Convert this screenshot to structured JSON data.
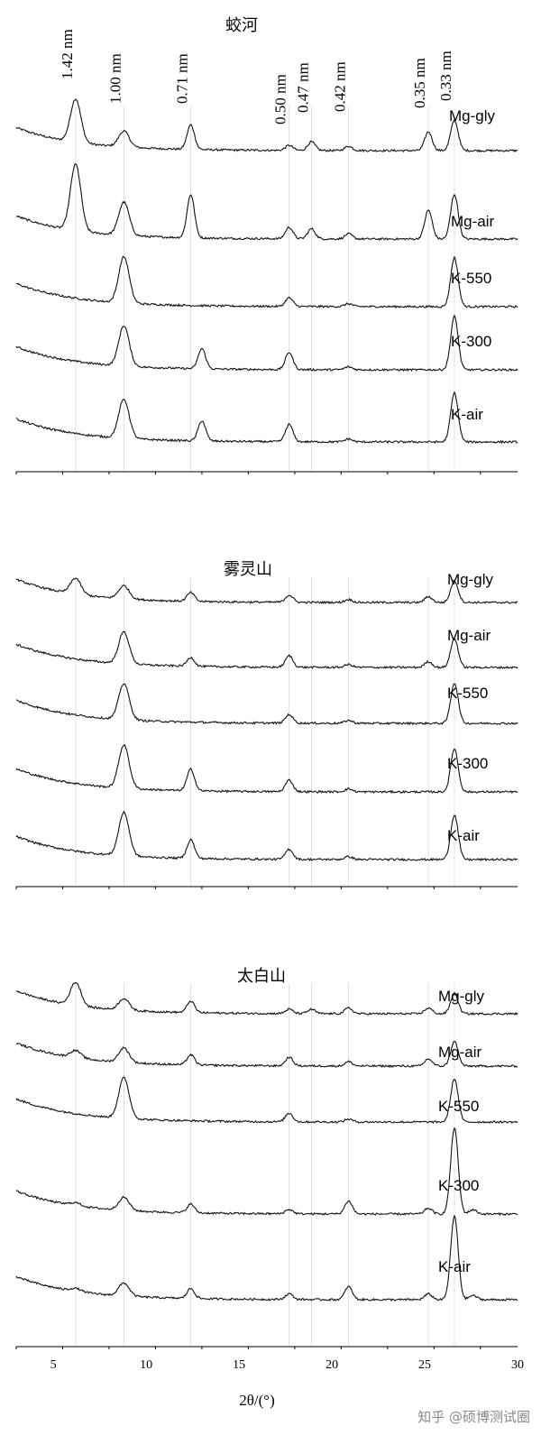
{
  "watermark": "知乎 @硕博测试圈",
  "chart_data": {
    "type": "line",
    "xlabel": "2θ/(°)",
    "xlim": [
      3,
      30
    ],
    "xticks": [
      5,
      10,
      15,
      20,
      25,
      30
    ],
    "grid": false,
    "reference_lines": {
      "two_theta": [
        6.2,
        8.8,
        12.4,
        17.7,
        18.9,
        20.9,
        25.2,
        26.6
      ],
      "d_labels": [
        "1.42 nm",
        "1.00 nm",
        "0.71 nm",
        "0.50 nm",
        "0.47 nm",
        "0.42 nm",
        "0.35 nm",
        "0.33 nm"
      ]
    },
    "panels": [
      {
        "title": "蛟河",
        "series": [
          {
            "name": "Mg-gly",
            "peaks": [
              [
                6.2,
                3.0
              ],
              [
                8.8,
                1.1
              ],
              [
                12.4,
                1.7
              ],
              [
                17.7,
                0.35
              ],
              [
                18.9,
                0.6
              ],
              [
                20.9,
                0.3
              ],
              [
                25.2,
                1.3
              ],
              [
                26.6,
                2.1
              ]
            ]
          },
          {
            "name": "Mg-air",
            "peaks": [
              [
                6.2,
                4.6
              ],
              [
                8.8,
                2.3
              ],
              [
                12.4,
                3.0
              ],
              [
                17.7,
                0.8
              ],
              [
                18.9,
                0.7
              ],
              [
                20.9,
                0.35
              ],
              [
                25.2,
                2.0
              ],
              [
                26.6,
                3.1
              ]
            ]
          },
          {
            "name": "K-550",
            "peaks": [
              [
                8.8,
                3.2
              ],
              [
                17.7,
                0.6
              ],
              [
                20.9,
                0.2
              ],
              [
                26.6,
                3.4
              ]
            ]
          },
          {
            "name": "K-300",
            "peaks": [
              [
                8.8,
                2.8
              ],
              [
                13.0,
                1.4
              ],
              [
                17.7,
                1.2
              ],
              [
                20.9,
                0.2
              ],
              [
                26.6,
                3.7
              ]
            ]
          },
          {
            "name": "K-air",
            "peaks": [
              [
                8.8,
                2.7
              ],
              [
                13.0,
                1.4
              ],
              [
                17.7,
                1.2
              ],
              [
                20.9,
                0.2
              ],
              [
                26.6,
                3.4
              ]
            ]
          }
        ]
      },
      {
        "title": "雾灵山",
        "series": [
          {
            "name": "Mg-gly",
            "peaks": [
              [
                6.2,
                1.1
              ],
              [
                8.8,
                0.9
              ],
              [
                12.4,
                0.6
              ],
              [
                17.7,
                0.5
              ],
              [
                20.9,
                0.2
              ],
              [
                25.2,
                0.4
              ],
              [
                26.6,
                1.5
              ]
            ]
          },
          {
            "name": "Mg-air",
            "peaks": [
              [
                8.8,
                2.2
              ],
              [
                12.4,
                0.6
              ],
              [
                17.7,
                0.8
              ],
              [
                20.9,
                0.2
              ],
              [
                25.2,
                0.4
              ],
              [
                26.6,
                2.0
              ]
            ]
          },
          {
            "name": "K-550",
            "peaks": [
              [
                8.8,
                2.5
              ],
              [
                17.7,
                0.6
              ],
              [
                20.9,
                0.2
              ],
              [
                26.6,
                2.8
              ]
            ]
          },
          {
            "name": "K-300",
            "peaks": [
              [
                8.8,
                3.0
              ],
              [
                12.4,
                1.5
              ],
              [
                17.7,
                0.8
              ],
              [
                20.9,
                0.2
              ],
              [
                26.6,
                3.0
              ]
            ]
          },
          {
            "name": "K-air",
            "peaks": [
              [
                8.8,
                3.0
              ],
              [
                12.4,
                1.3
              ],
              [
                17.7,
                0.7
              ],
              [
                20.9,
                0.2
              ],
              [
                26.6,
                3.1
              ]
            ]
          }
        ]
      },
      {
        "title": "太白山",
        "series": [
          {
            "name": "Mg-gly",
            "peaks": [
              [
                6.2,
                1.6
              ],
              [
                8.8,
                0.8
              ],
              [
                12.4,
                0.8
              ],
              [
                17.7,
                0.3
              ],
              [
                18.9,
                0.3
              ],
              [
                20.9,
                0.4
              ],
              [
                25.2,
                0.4
              ],
              [
                26.6,
                1.4
              ]
            ]
          },
          {
            "name": "Mg-air",
            "peaks": [
              [
                6.2,
                0.5
              ],
              [
                8.8,
                1.0
              ],
              [
                12.4,
                0.7
              ],
              [
                17.7,
                0.6
              ],
              [
                20.9,
                0.3
              ],
              [
                25.2,
                0.5
              ],
              [
                26.6,
                1.7
              ]
            ]
          },
          {
            "name": "K-550",
            "peaks": [
              [
                8.8,
                2.8
              ],
              [
                17.7,
                0.6
              ],
              [
                20.9,
                0.2
              ],
              [
                26.6,
                3.0
              ]
            ]
          },
          {
            "name": "K-300",
            "peaks": [
              [
                6.2,
                0.2
              ],
              [
                8.8,
                0.9
              ],
              [
                12.4,
                0.6
              ],
              [
                17.7,
                0.3
              ],
              [
                20.9,
                0.9
              ],
              [
                25.2,
                0.4
              ],
              [
                26.6,
                6.0
              ],
              [
                27.6,
                0.3
              ]
            ]
          },
          {
            "name": "K-air",
            "peaks": [
              [
                6.2,
                0.2
              ],
              [
                8.8,
                0.9
              ],
              [
                12.4,
                0.7
              ],
              [
                17.7,
                0.4
              ],
              [
                20.9,
                0.9
              ],
              [
                25.2,
                0.4
              ],
              [
                26.6,
                5.8
              ],
              [
                27.6,
                0.3
              ]
            ]
          }
        ]
      }
    ]
  }
}
